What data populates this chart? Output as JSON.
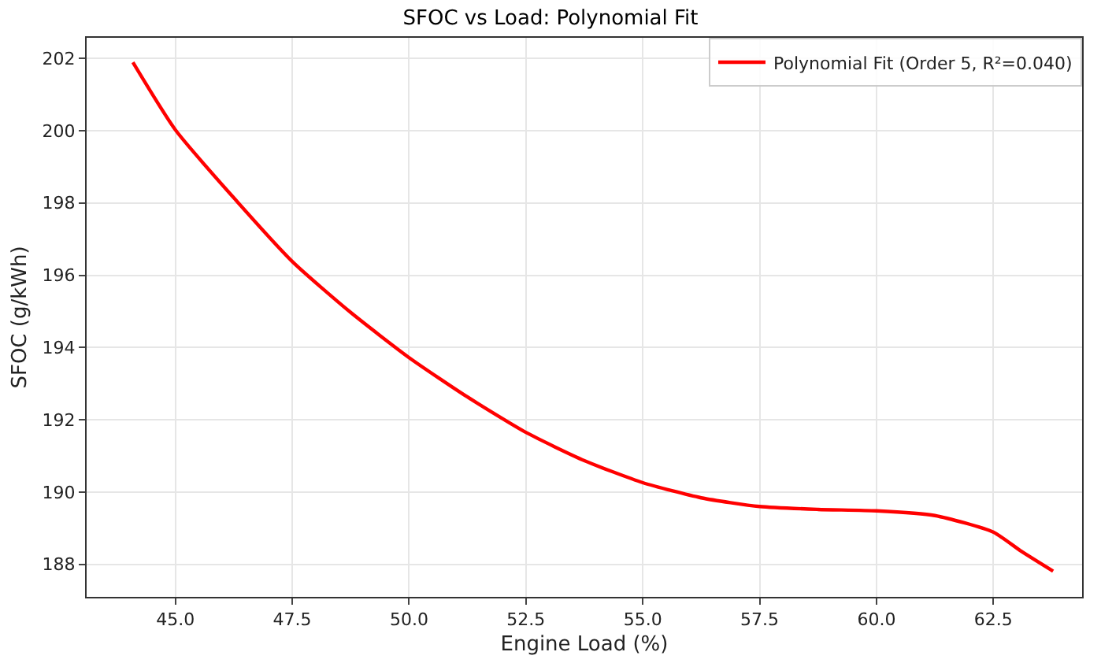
{
  "chart_data": {
    "type": "line",
    "title": "SFOC vs Load: Polynomial Fit",
    "xlabel": "Engine Load (%)",
    "ylabel": "SFOC (g/kWh)",
    "x": [
      44.09,
      45,
      46.25,
      47.5,
      48.75,
      50,
      51.25,
      52.5,
      53.75,
      55,
      56.25,
      57.5,
      58.75,
      60,
      61.25,
      62.5,
      63.1,
      63.78
    ],
    "series": [
      {
        "name": "Polynomial Fit (Order 5, R²=0.040)",
        "color": "#ff0000",
        "values": [
          201.89,
          200.02,
          198.14,
          196.38,
          194.97,
          193.72,
          192.63,
          191.65,
          190.87,
          190.26,
          189.84,
          189.6,
          189.52,
          189.48,
          189.35,
          188.89,
          188.36,
          187.81
        ]
      }
    ],
    "xlim": [
      43.1,
      64.4
    ],
    "xticks": [
      {
        "value": 45,
        "label": "45.0"
      },
      {
        "value": 47.5,
        "label": "47.5"
      },
      {
        "value": 50,
        "label": "50.0"
      },
      {
        "value": 52.5,
        "label": "52.5"
      },
      {
        "value": 55,
        "label": "55.0"
      },
      {
        "value": 57.5,
        "label": "57.5"
      },
      {
        "value": 60,
        "label": "60.0"
      },
      {
        "value": 62.5,
        "label": "62.5"
      }
    ],
    "ylim": [
      187.1,
      202.57
    ],
    "yticks": [
      188,
      190,
      192,
      194,
      196,
      198,
      200,
      202
    ],
    "grid": true,
    "legend": "top right",
    "marker": "none",
    "line_style": "solid"
  }
}
